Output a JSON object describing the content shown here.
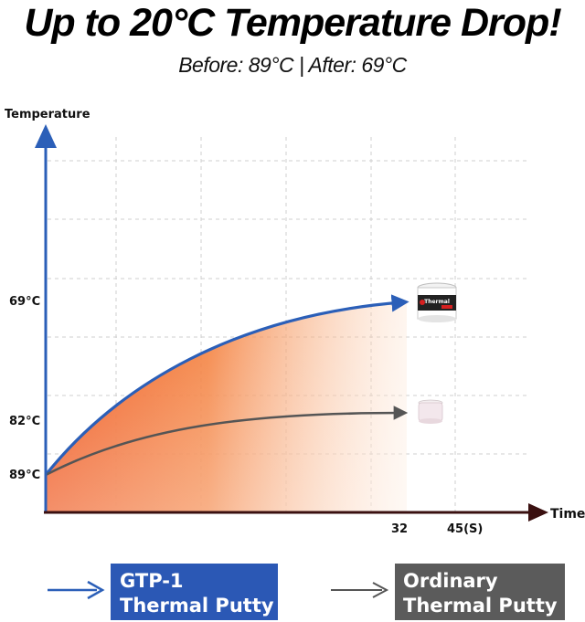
{
  "headline": "Up to 20°C Temperature Drop!",
  "subheadline": "Before: 89°C | After: 69°C",
  "chart_data": {
    "type": "line",
    "title": "",
    "ylabel": "Temperature",
    "xlabel": "Time",
    "x_ticks": [
      "32",
      "45(S)"
    ],
    "y_ticks": [
      "89°C",
      "82°C",
      "69°C"
    ],
    "grid": true,
    "series": [
      {
        "name": "GTP-1 Thermal Putty",
        "color": "#2b5fb8",
        "fill": "orange-gradient",
        "points": [
          {
            "x": 0,
            "y": "89°C"
          },
          {
            "x": 32,
            "y": "69°C"
          }
        ]
      },
      {
        "name": "Ordinary Thermal Putty",
        "color": "#555555",
        "points": [
          {
            "x": 0,
            "y": "89°C"
          },
          {
            "x": 32,
            "y": "82°C"
          }
        ]
      }
    ]
  },
  "legend": {
    "gtp_line1": "GTP-1",
    "gtp_line2": "Thermal Putty",
    "ordinary_line1": "Ordinary",
    "ordinary_line2": "Thermal Putty"
  },
  "product_jar": {
    "label": "Thermal",
    "icon": "thermal-putty-jar-icon"
  },
  "colors": {
    "blue": "#2b58b5",
    "gray": "#5b5b5b",
    "orange": "#ef5a1c",
    "axis_dark": "#3a1010"
  }
}
